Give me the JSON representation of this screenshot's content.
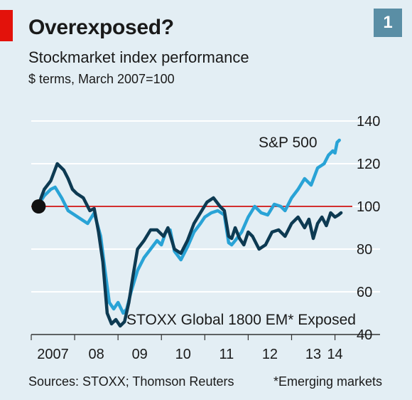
{
  "badge": "1",
  "footer": {
    "sources": "Sources: STOXX; Thomson Reuters",
    "footnote": "*Emerging markets"
  },
  "chart_data": {
    "type": "line",
    "title": "Overexposed?",
    "subtitle": "Stockmarket index performance",
    "units": "$ terms, March 2007=100",
    "xlabel": "",
    "ylabel": "",
    "x_ticks": [
      {
        "label": "2007",
        "value": 2007.5
      },
      {
        "label": "08",
        "value": 2008.5
      },
      {
        "label": "09",
        "value": 2009.5
      },
      {
        "label": "10",
        "value": 2010.5
      },
      {
        "label": "11",
        "value": 2011.5
      },
      {
        "label": "12",
        "value": 2012.5
      },
      {
        "label": "13",
        "value": 2013.5
      },
      {
        "label": "14",
        "value": 2014
      }
    ],
    "xlim": [
      2007.0,
      2014.4
    ],
    "ylim": [
      40,
      140
    ],
    "y_ticks": [
      40,
      60,
      80,
      100,
      120,
      140
    ],
    "reference_line": {
      "value": 100,
      "color": "#d32f2f"
    },
    "start_marker": {
      "x": 2007.17,
      "y": 100
    },
    "grid": true,
    "series": [
      {
        "name": "S&P 500",
        "color": "#29a3d6",
        "x": [
          2007.17,
          2007.3,
          2007.45,
          2007.55,
          2007.7,
          2007.85,
          2008.0,
          2008.15,
          2008.3,
          2008.45,
          2008.6,
          2008.7,
          2008.8,
          2008.9,
          2009.0,
          2009.12,
          2009.2,
          2009.3,
          2009.45,
          2009.6,
          2009.75,
          2009.9,
          2010.0,
          2010.1,
          2010.2,
          2010.3,
          2010.45,
          2010.6,
          2010.75,
          2010.9,
          2011.0,
          2011.15,
          2011.3,
          2011.45,
          2011.55,
          2011.62,
          2011.7,
          2011.85,
          2012.0,
          2012.15,
          2012.3,
          2012.45,
          2012.6,
          2012.75,
          2012.85,
          2013.0,
          2013.15,
          2013.3,
          2013.45,
          2013.6,
          2013.75,
          2013.85,
          2013.95,
          2014.0,
          2014.05,
          2014.1
        ],
        "values": [
          101,
          105,
          108,
          109,
          104,
          98,
          96,
          94,
          92,
          97,
          86,
          70,
          55,
          52,
          55,
          50,
          52,
          60,
          70,
          76,
          80,
          84,
          82,
          88,
          89,
          79,
          75,
          81,
          88,
          92,
          95,
          97,
          98,
          96,
          83,
          82,
          84,
          88,
          95,
          100,
          97,
          96,
          101,
          100,
          98,
          104,
          108,
          113,
          110,
          118,
          120,
          124,
          126,
          125,
          130,
          131
        ]
      },
      {
        "name": "STOXX Global 1800 EM* Exposed",
        "color": "#0d3a52",
        "x": [
          2007.17,
          2007.3,
          2007.45,
          2007.6,
          2007.75,
          2007.85,
          2007.95,
          2008.05,
          2008.2,
          2008.35,
          2008.45,
          2008.55,
          2008.65,
          2008.75,
          2008.85,
          2008.95,
          2009.05,
          2009.15,
          2009.25,
          2009.35,
          2009.45,
          2009.6,
          2009.75,
          2009.9,
          2010.05,
          2010.15,
          2010.3,
          2010.45,
          2010.6,
          2010.75,
          2010.9,
          2011.05,
          2011.2,
          2011.35,
          2011.45,
          2011.55,
          2011.62,
          2011.7,
          2011.8,
          2011.9,
          2012.0,
          2012.1,
          2012.25,
          2012.4,
          2012.55,
          2012.7,
          2012.85,
          2013.0,
          2013.15,
          2013.3,
          2013.4,
          2013.5,
          2013.6,
          2013.7,
          2013.8,
          2013.9,
          2014.0,
          2014.08,
          2014.14
        ],
        "values": [
          101,
          108,
          112,
          120,
          117,
          113,
          108,
          106,
          104,
          98,
          99,
          88,
          74,
          50,
          45,
          47,
          44,
          46,
          55,
          68,
          80,
          84,
          89,
          89,
          86,
          90,
          80,
          78,
          84,
          92,
          97,
          102,
          104,
          100,
          98,
          86,
          85,
          90,
          85,
          82,
          88,
          86,
          80,
          82,
          88,
          89,
          86,
          92,
          95,
          90,
          94,
          85,
          92,
          95,
          91,
          97,
          95,
          96,
          97
        ]
      }
    ],
    "annotations": [
      {
        "text": "S&P 500",
        "series": 0
      },
      {
        "text": "STOXX Global 1800 EM* Exposed",
        "series": 1
      }
    ]
  }
}
